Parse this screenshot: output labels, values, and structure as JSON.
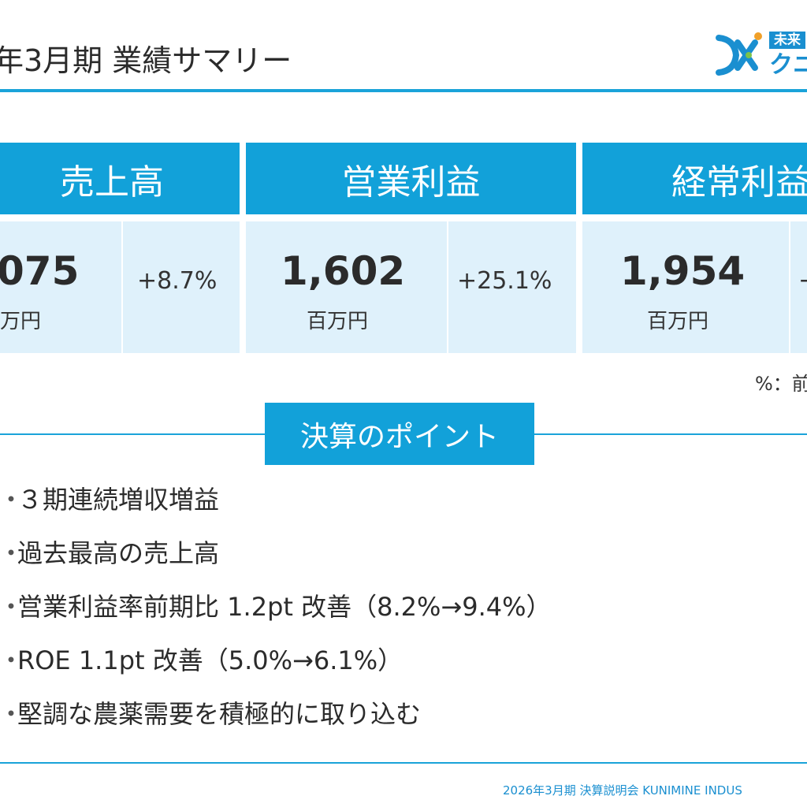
{
  "header": {
    "title": "年3月期 業績サマリー",
    "logo_tag": "未来",
    "logo_name": "クニ",
    "brand_color": "#1aa3d9"
  },
  "metrics": [
    {
      "label": "売上高",
      "value": "075",
      "unit": "万円",
      "change": "+8.7%"
    },
    {
      "label": "営業利益",
      "value": "1,602",
      "unit": "百万円",
      "change": "+25.1%"
    },
    {
      "label": "経常利益",
      "value": "1,954",
      "unit": "百万円",
      "change": "+"
    }
  ],
  "note": "%：前",
  "points": {
    "heading": "決算のポイント",
    "bullet": "・",
    "items": [
      "３期連続増収増益",
      "過去最高の売上高",
      "営業利益率前期比 1.2pt 改善（8.2%→9.4%）",
      "ROE 1.1pt 改善（5.0%→6.1%）",
      "堅調な農薬需要を積極的に取り込む"
    ]
  },
  "footer": {
    "text": "2026年3月期 決算説明会 KUNIMINE INDUS"
  }
}
